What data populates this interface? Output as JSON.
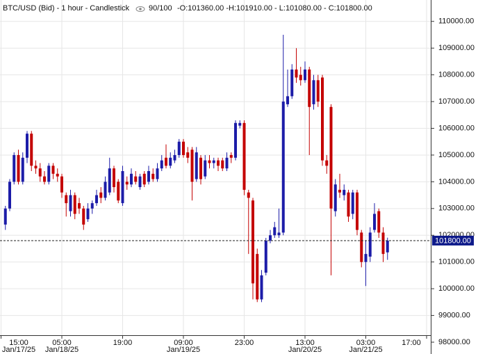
{
  "chart_data": {
    "type": "candlestick",
    "title": "BTC/USD (Bid) - 1 hour - Candlestick",
    "counter": "90/100",
    "ohlc_text": "-O:101360.00 -H:101910.00 - L:101080.00 - C:101800.00",
    "up_color": "#1c1ca8",
    "down_color": "#c40000",
    "grid": true,
    "xlim": [
      -0.24,
      98.96
    ],
    "ylim": [
      98000,
      110800
    ],
    "xticks": [
      {
        "value": 0,
        "label": "15:00",
        "date": "Jan/17/25"
      },
      {
        "value": 14,
        "label": "05:00",
        "date": "Jan/18/25"
      },
      {
        "value": 28,
        "label": "19:00"
      },
      {
        "value": 42,
        "label": "09:00",
        "date": "Jan/19/25"
      },
      {
        "value": 56,
        "label": "23:00"
      },
      {
        "value": 70,
        "label": "13:00",
        "date": "Jan/20/25"
      },
      {
        "value": 84,
        "label": "03:00",
        "date": "Jan/21/25"
      },
      {
        "value": 98,
        "label": "17:00"
      }
    ],
    "yticks": [
      {
        "value": 98000,
        "label": "98000.00"
      },
      {
        "value": 99000,
        "label": "99000.00"
      },
      {
        "value": 100000,
        "label": "100000.00"
      },
      {
        "value": 101000,
        "label": "101000.00"
      },
      {
        "value": 102000,
        "label": "102000.00"
      },
      {
        "value": 103000,
        "label": "103000.00"
      },
      {
        "value": 104000,
        "label": "104000.00"
      },
      {
        "value": 105000,
        "label": "105000.00"
      },
      {
        "value": 106000,
        "label": "106000.00"
      },
      {
        "value": 107000,
        "label": "107000.00"
      },
      {
        "value": 108000,
        "label": "108000.00"
      },
      {
        "value": 109000,
        "label": "109000.00"
      },
      {
        "value": 110000,
        "label": "110000.00"
      }
    ],
    "last_price": {
      "value": 101800,
      "label": "101800.00"
    },
    "x": [
      1,
      2,
      3,
      4,
      5,
      6,
      7,
      8,
      9,
      10,
      11,
      12,
      13,
      14,
      15,
      16,
      17,
      18,
      19,
      20,
      21,
      22,
      23,
      24,
      25,
      26,
      27,
      28,
      29,
      30,
      31,
      32,
      33,
      34,
      35,
      36,
      37,
      38,
      39,
      40,
      41,
      42,
      43,
      44,
      45,
      46,
      47,
      48,
      49,
      50,
      51,
      52,
      53,
      54,
      55,
      56,
      57,
      58,
      59,
      60,
      61,
      62,
      63,
      64,
      65,
      66,
      67,
      68,
      69,
      70,
      71,
      72,
      73,
      74,
      75,
      76,
      77,
      78,
      79,
      80,
      81,
      82,
      83,
      84,
      85,
      86,
      87,
      88,
      89
    ],
    "open": [
      102400,
      103000,
      104000,
      105000,
      104000,
      104900,
      105800,
      104600,
      104500,
      104200,
      104000,
      104600,
      104300,
      104200,
      103500,
      102900,
      103500,
      103200,
      103000,
      102600,
      103000,
      103200,
      103600,
      103400,
      103600,
      104500,
      104000,
      103200,
      104000,
      103900,
      104200,
      103800,
      104300,
      104000,
      104300,
      104100,
      104500,
      104900,
      104600,
      104800,
      105000,
      105500,
      105100,
      105200,
      104100,
      104900,
      104200,
      104800,
      104700,
      104800,
      104800,
      104500,
      105000,
      104900,
      106100,
      106200,
      103600,
      103300,
      101300,
      99600,
      100600,
      101800,
      102000,
      102000,
      102100,
      106900,
      107200,
      108200,
      108000,
      107800,
      108200,
      106900,
      107800,
      107900,
      104800,
      106800,
      102900,
      103700,
      103500,
      103600,
      102800,
      103600,
      102100,
      101000,
      101200,
      102200,
      102900,
      102100,
      101360
    ],
    "high": [
      103100,
      104100,
      105100,
      105200,
      105100,
      105900,
      105900,
      104800,
      104700,
      104400,
      104700,
      104700,
      104500,
      104300,
      103600,
      103700,
      103600,
      103400,
      103100,
      103200,
      103300,
      103700,
      103800,
      104200,
      104900,
      104600,
      104100,
      104600,
      104200,
      104500,
      104400,
      104300,
      104400,
      104600,
      104500,
      104700,
      105000,
      105400,
      105100,
      105200,
      105600,
      105600,
      105300,
      105300,
      105300,
      105000,
      105000,
      105000,
      104900,
      104900,
      104900,
      105100,
      105100,
      106300,
      106300,
      106300,
      103700,
      103400,
      101500,
      100700,
      101900,
      102200,
      102500,
      103000,
      109500,
      108200,
      108400,
      109000,
      108300,
      108500,
      108300,
      108000,
      108000,
      108000,
      105000,
      106900,
      104100,
      104300,
      103900,
      103700,
      103700,
      103700,
      102200,
      101800,
      102300,
      103200,
      103000,
      102300,
      101910
    ],
    "low": [
      102200,
      102900,
      103900,
      103900,
      103900,
      104700,
      104400,
      104300,
      104000,
      103900,
      103900,
      104100,
      104000,
      103400,
      102700,
      102700,
      102600,
      102800,
      102200,
      102500,
      102800,
      103100,
      103200,
      103300,
      103500,
      103600,
      103200,
      103100,
      103700,
      103800,
      103900,
      103700,
      103800,
      103900,
      104000,
      104000,
      104400,
      104500,
      104500,
      104700,
      104900,
      104900,
      104700,
      103300,
      104000,
      103900,
      104100,
      104500,
      104500,
      104400,
      104400,
      104400,
      104700,
      104800,
      106000,
      103500,
      101300,
      99600,
      99500,
      99500,
      100500,
      101700,
      101900,
      101900,
      102000,
      106800,
      107100,
      107700,
      107600,
      107700,
      105000,
      106700,
      106800,
      104600,
      104300,
      100500,
      102700,
      103400,
      103300,
      102500,
      102600,
      102000,
      100800,
      100100,
      101000,
      102100,
      101900,
      101000,
      101080
    ],
    "close": [
      103000,
      104000,
      105000,
      104000,
      104900,
      105800,
      104600,
      104500,
      104200,
      104000,
      104600,
      104300,
      104200,
      103600,
      103200,
      103500,
      102800,
      103000,
      102400,
      103000,
      103200,
      103500,
      103400,
      104000,
      104500,
      103800,
      103300,
      104400,
      103900,
      104300,
      104000,
      104200,
      103900,
      104400,
      104100,
      104500,
      104800,
      104600,
      104900,
      105000,
      105500,
      105000,
      104900,
      104000,
      105100,
      104100,
      104800,
      104700,
      104800,
      104600,
      104500,
      104900,
      104900,
      106200,
      106200,
      103700,
      103400,
      100200,
      99600,
      100500,
      101800,
      102000,
      102300,
      102100,
      107000,
      107200,
      108200,
      107900,
      107800,
      108200,
      106800,
      107800,
      107000,
      104800,
      104600,
      103000,
      103900,
      103600,
      103700,
      102700,
      103600,
      102200,
      101000,
      101300,
      102100,
      102800,
      102100,
      101300,
      101800
    ]
  }
}
